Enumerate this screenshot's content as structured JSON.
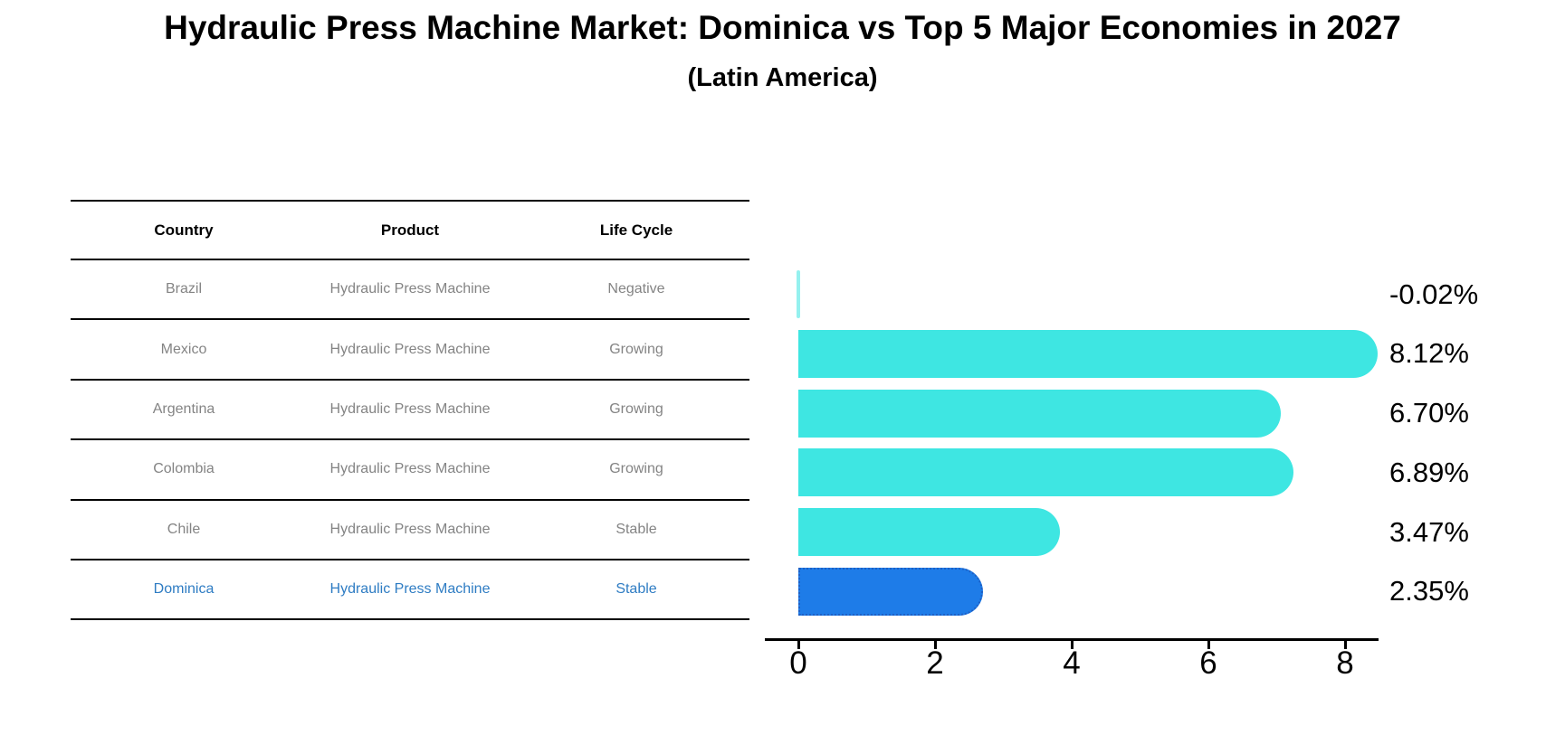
{
  "header": {
    "title": "Hydraulic Press Machine Market: Dominica vs Top 5 Major Economies in 2027",
    "subtitle": "(Latin America)"
  },
  "table": {
    "headers": [
      "Country",
      "Product",
      "Life Cycle"
    ],
    "rows": [
      {
        "country": "Brazil",
        "product": "Hydraulic Press Machine",
        "life_cycle": "Negative",
        "highlighted": false
      },
      {
        "country": "Mexico",
        "product": "Hydraulic Press Machine",
        "life_cycle": "Growing",
        "highlighted": false
      },
      {
        "country": "Argentina",
        "product": "Hydraulic Press Machine",
        "life_cycle": "Growing",
        "highlighted": false
      },
      {
        "country": "Colombia",
        "product": "Hydraulic Press Machine",
        "life_cycle": "Growing",
        "highlighted": false
      },
      {
        "country": "Chile",
        "product": "Hydraulic Press Machine",
        "life_cycle": "Stable",
        "highlighted": false
      },
      {
        "country": "Dominica",
        "product": "Hydraulic Press Machine",
        "life_cycle": "Stable",
        "highlighted": true
      }
    ]
  },
  "chart_data": {
    "type": "bar",
    "orientation": "horizontal",
    "title": "Hydraulic Press Machine Market: Dominica vs Top 5 Major Economies in 2027 (Latin America)",
    "categories": [
      "Brazil",
      "Mexico",
      "Argentina",
      "Colombia",
      "Chile",
      "Dominica"
    ],
    "values": [
      -0.02,
      8.12,
      6.7,
      6.89,
      3.47,
      2.35
    ],
    "value_labels": [
      "-0.02%",
      "8.12%",
      "6.70%",
      "6.89%",
      "3.47%",
      "2.35%"
    ],
    "x_ticks": [
      0,
      2,
      4,
      6,
      8
    ],
    "xlim": [
      -0.25,
      8.5
    ],
    "xlabel": "",
    "ylabel": "",
    "grid": false,
    "legend": "none",
    "bar_color": "#3ee6e2",
    "negative_bar_color": "rgba(62,230,226,0.55)",
    "highlight_index": 5,
    "highlight_color": "#1e7ce8",
    "highlight_border_color": "#1e5fc4",
    "highlight_text_color": "#2e7cc3"
  }
}
